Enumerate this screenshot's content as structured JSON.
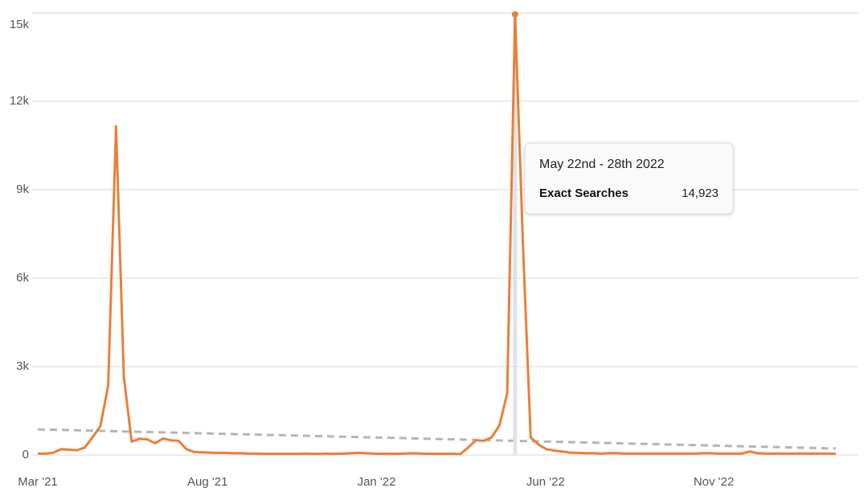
{
  "chart_data": {
    "type": "line",
    "x": [
      0,
      1,
      2,
      3,
      4,
      5,
      6,
      7,
      8,
      9,
      10,
      11,
      12,
      13,
      14,
      15,
      16,
      17,
      18,
      19,
      20,
      21,
      22,
      23,
      24,
      25,
      26,
      27,
      28,
      29,
      30,
      31,
      32,
      33,
      34,
      35,
      36,
      37,
      38,
      39,
      40,
      41,
      42,
      43,
      44,
      45,
      46,
      47,
      48,
      49,
      50,
      51,
      52,
      53,
      54,
      55,
      56,
      57,
      58,
      59,
      60,
      61,
      62,
      63,
      64,
      65,
      66,
      67,
      68,
      69,
      70,
      71,
      72,
      73,
      74,
      75,
      76,
      77,
      78,
      79,
      80,
      81,
      82,
      83,
      84,
      85,
      86,
      87,
      88,
      89,
      90,
      91,
      92,
      93,
      94,
      95,
      96,
      97,
      98,
      99,
      100,
      101,
      102
    ],
    "series": [
      {
        "name": "Exact Searches",
        "color": "#e8803a",
        "values": [
          50,
          50,
          80,
          200,
          180,
          160,
          250,
          600,
          980,
          2350,
          11150,
          2650,
          450,
          550,
          530,
          400,
          560,
          500,
          480,
          200,
          100,
          90,
          80,
          70,
          70,
          60,
          60,
          50,
          50,
          40,
          40,
          40,
          40,
          40,
          50,
          40,
          40,
          50,
          40,
          50,
          60,
          70,
          60,
          50,
          40,
          50,
          40,
          50,
          60,
          50,
          40,
          40,
          40,
          40,
          30,
          250,
          500,
          480,
          600,
          1000,
          2100,
          14923,
          7200,
          600,
          350,
          200,
          150,
          120,
          80,
          70,
          60,
          60,
          50,
          60,
          60,
          50,
          50,
          50,
          50,
          50,
          50,
          50,
          50,
          50,
          50,
          60,
          60,
          50,
          50,
          50,
          50,
          120,
          60,
          50,
          50,
          50,
          50,
          50,
          50,
          50,
          50,
          50,
          40
        ]
      }
    ],
    "trend": {
      "color": "#b5b5b5",
      "values": [
        870,
        220
      ]
    },
    "tooltip": {
      "title": "May 22nd - 28th 2022",
      "value_label": "14,923"
    },
    "xlim": [
      0,
      102
    ],
    "xticks": [
      {
        "value": 0,
        "label": "Mar '21"
      },
      {
        "value": 21.7,
        "label": "Aug '21"
      },
      {
        "value": 43.3,
        "label": "Jan '22"
      },
      {
        "value": 64.9,
        "label": "Jun '22"
      },
      {
        "value": 86.4,
        "label": "Nov '22"
      }
    ],
    "ylim": [
      0,
      15000
    ],
    "yticks": [
      0,
      {
        "value": 3000,
        "label": "3k"
      },
      {
        "value": 6000,
        "label": "6k"
      },
      {
        "value": 9000,
        "label": "9k"
      },
      {
        "value": 12000,
        "label": "12k"
      },
      {
        "value": 15000,
        "label": "15k"
      }
    ],
    "grid": true
  }
}
